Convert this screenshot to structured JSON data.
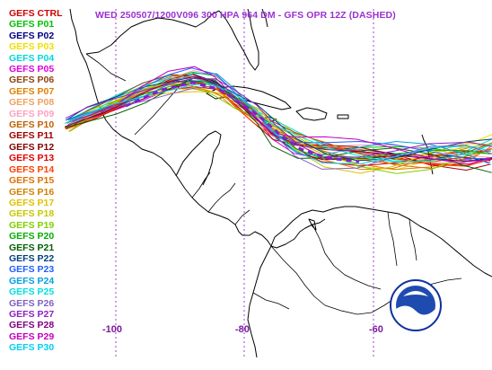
{
  "header": {
    "title": "WED 250507/1200V096  300 HPA 964 DM - GFS OPR 12Z (DASHED)"
  },
  "legend": [
    {
      "label": "GEFS CTRL",
      "color": "#d00000"
    },
    {
      "label": "GEFS P01",
      "color": "#00c000"
    },
    {
      "label": "GEFS P02",
      "color": "#000080"
    },
    {
      "label": "GEFS P03",
      "color": "#f0e000"
    },
    {
      "label": "GEFS P04",
      "color": "#00d8d8"
    },
    {
      "label": "GEFS P05",
      "color": "#e000e0"
    },
    {
      "label": "GEFS P06",
      "color": "#8b4513"
    },
    {
      "label": "GEFS P07",
      "color": "#e08000"
    },
    {
      "label": "GEFS P08",
      "color": "#f0a060"
    },
    {
      "label": "GEFS P09",
      "color": "#ffa0c0"
    },
    {
      "label": "GEFS P10",
      "color": "#c06000"
    },
    {
      "label": "GEFS P11",
      "color": "#a00000"
    },
    {
      "label": "GEFS P12",
      "color": "#800000"
    },
    {
      "label": "GEFS P13",
      "color": "#e00000"
    },
    {
      "label": "GEFS P14",
      "color": "#ff4000"
    },
    {
      "label": "GEFS P15",
      "color": "#e07000"
    },
    {
      "label": "GEFS P16",
      "color": "#d08000"
    },
    {
      "label": "GEFS P17",
      "color": "#e0c000"
    },
    {
      "label": "GEFS P18",
      "color": "#c8c800"
    },
    {
      "label": "GEFS P19",
      "color": "#80d000"
    },
    {
      "label": "GEFS P20",
      "color": "#00b000"
    },
    {
      "label": "GEFS P21",
      "color": "#006000"
    },
    {
      "label": "GEFS P22",
      "color": "#004080"
    },
    {
      "label": "GEFS P23",
      "color": "#2060ff"
    },
    {
      "label": "GEFS P24",
      "color": "#00a0e0"
    },
    {
      "label": "GEFS P25",
      "color": "#00e0e0"
    },
    {
      "label": "GEFS P26",
      "color": "#8060c0"
    },
    {
      "label": "GEFS P27",
      "color": "#9020c0"
    },
    {
      "label": "GEFS P28",
      "color": "#800080"
    },
    {
      "label": "GEFS P29",
      "color": "#c000c0"
    },
    {
      "label": "GEFS P30",
      "color": "#00d0f0"
    }
  ],
  "longitude_labels": [
    "-100",
    "-80",
    "-60"
  ],
  "logo": {
    "text": "NOAA"
  },
  "colors": {
    "title": "#9b30d0",
    "grid": "#9b30d0",
    "coast": "#000000",
    "opr": "#8020d0"
  }
}
